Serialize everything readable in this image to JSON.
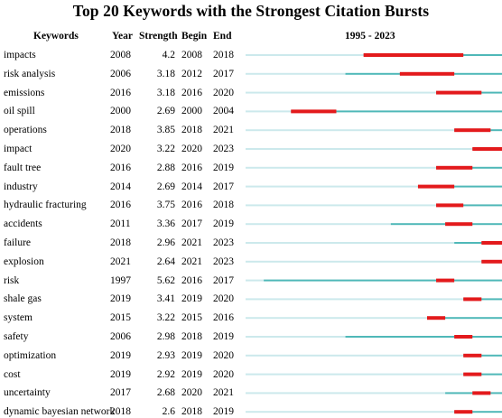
{
  "title": "Top 20 Keywords with the Strongest Citation Bursts",
  "headers": {
    "keywords": "Keywords",
    "year": "Year",
    "strength": "Strength",
    "begin": "Begin",
    "end": "End",
    "range": "1995 - 2023"
  },
  "chart_data": {
    "type": "table",
    "timeline_start": 1995,
    "timeline_end": 2023,
    "colors": {
      "burst": "#e31a1c",
      "active": "#4fb8b8",
      "inactive": "#cce9ec"
    },
    "rows": [
      {
        "keyword": "impacts",
        "year": 2008,
        "strength": "4.2",
        "begin": 2008,
        "end": 2018
      },
      {
        "keyword": "risk analysis",
        "year": 2006,
        "strength": "3.18",
        "begin": 2012,
        "end": 2017
      },
      {
        "keyword": "emissions",
        "year": 2016,
        "strength": "3.18",
        "begin": 2016,
        "end": 2020
      },
      {
        "keyword": "oil spill",
        "year": 2000,
        "strength": "2.69",
        "begin": 2000,
        "end": 2004
      },
      {
        "keyword": "operations",
        "year": 2018,
        "strength": "3.85",
        "begin": 2018,
        "end": 2021
      },
      {
        "keyword": "impact",
        "year": 2020,
        "strength": "3.22",
        "begin": 2020,
        "end": 2023
      },
      {
        "keyword": "fault tree",
        "year": 2016,
        "strength": "2.88",
        "begin": 2016,
        "end": 2019
      },
      {
        "keyword": "industry",
        "year": 2014,
        "strength": "2.69",
        "begin": 2014,
        "end": 2017
      },
      {
        "keyword": "hydraulic fracturing",
        "year": 2016,
        "strength": "3.75",
        "begin": 2016,
        "end": 2018
      },
      {
        "keyword": "accidents",
        "year": 2011,
        "strength": "3.36",
        "begin": 2017,
        "end": 2019
      },
      {
        "keyword": "failure",
        "year": 2018,
        "strength": "2.96",
        "begin": 2021,
        "end": 2023
      },
      {
        "keyword": "explosion",
        "year": 2021,
        "strength": "2.64",
        "begin": 2021,
        "end": 2023
      },
      {
        "keyword": "risk",
        "year": 1997,
        "strength": "5.62",
        "begin": 2016,
        "end": 2017
      },
      {
        "keyword": "shale gas",
        "year": 2019,
        "strength": "3.41",
        "begin": 2019,
        "end": 2020
      },
      {
        "keyword": "system",
        "year": 2015,
        "strength": "3.22",
        "begin": 2015,
        "end": 2016
      },
      {
        "keyword": "safety",
        "year": 2006,
        "strength": "2.98",
        "begin": 2018,
        "end": 2019
      },
      {
        "keyword": "optimization",
        "year": 2019,
        "strength": "2.93",
        "begin": 2019,
        "end": 2020
      },
      {
        "keyword": "cost",
        "year": 2019,
        "strength": "2.92",
        "begin": 2019,
        "end": 2020
      },
      {
        "keyword": "uncertainty",
        "year": 2017,
        "strength": "2.68",
        "begin": 2020,
        "end": 2021
      },
      {
        "keyword": "dynamic bayesian network",
        "year": 2018,
        "strength": "2.6",
        "begin": 2018,
        "end": 2019
      }
    ]
  }
}
